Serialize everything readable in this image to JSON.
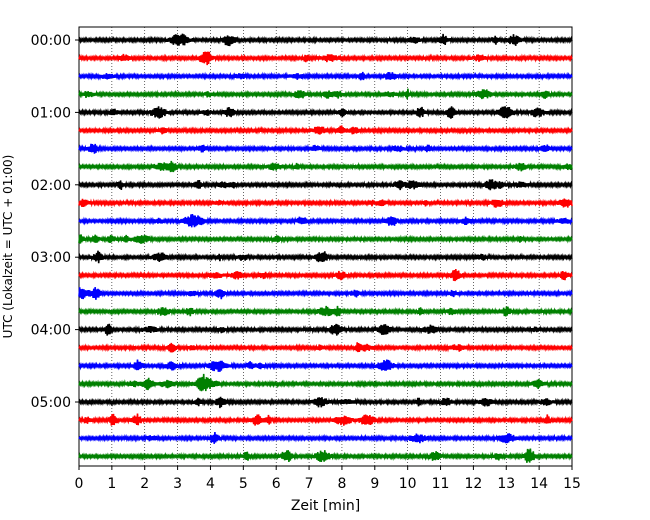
{
  "chart_data": {
    "type": "line",
    "title": "",
    "xlabel": "Zeit  [min]",
    "ylabel": "UTC (Lokalzeit = UTC + 01:00)",
    "xlim": [
      0,
      15
    ],
    "x_ticks": [
      "0",
      "1",
      "2",
      "3",
      "4",
      "5",
      "6",
      "7",
      "8",
      "9",
      "10",
      "11",
      "12",
      "13",
      "14",
      "15"
    ],
    "y_tick_labels": [
      "00:00",
      "01:00",
      "02:00",
      "03:00",
      "04:00",
      "05:00"
    ],
    "y_ticks_trace_index": [
      0,
      4,
      8,
      12,
      16,
      20
    ],
    "trace_count": 24,
    "trace_interval_minutes": 15,
    "trace_colors": [
      "#000000",
      "#ff0000",
      "#0000ff",
      "#008000"
    ],
    "grid": "vertical dotted at each minute",
    "legend": "none"
  }
}
